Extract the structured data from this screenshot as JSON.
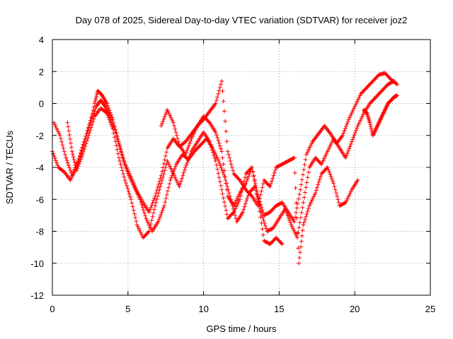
{
  "chart_data": {
    "type": "scatter",
    "title": "Day 078 of 2025, Sidereal Day-to-day VTEC variation (SDTVAR) for receiver joz2",
    "xlabel": "GPS time / hours",
    "ylabel": "SDTVAR / TECUs",
    "xlim": [
      0,
      25
    ],
    "ylim": [
      -12,
      4
    ],
    "xticks": [
      "0",
      "5",
      "10",
      "15",
      "20",
      "25"
    ],
    "yticks": [
      "4",
      "2",
      "0",
      "-2",
      "-4",
      "-6",
      "-8",
      "-10",
      "-12"
    ],
    "grid": true,
    "marker": "plus",
    "color": "#ff0000",
    "series": [
      {
        "x": [
          0,
          0.4,
          0.8,
          1.2,
          1.6,
          2.0,
          2.4,
          2.8,
          3.0,
          3.3,
          3.6,
          4.0,
          4.4,
          4.8,
          5.2,
          5.6,
          6.0,
          6.4,
          6.8,
          7.2,
          7.6,
          8.0,
          8.4,
          8.8,
          9.2,
          9.6,
          10.0,
          10.4,
          10.8,
          11.2,
          11.6,
          12.0,
          12.4,
          12.8,
          13.2,
          13.6,
          14.0,
          14.4,
          14.8,
          15.2,
          15.6,
          16.0,
          16.4,
          16.8,
          17.2,
          17.6,
          18.0,
          18.4,
          18.8,
          19.2,
          19.6,
          20.0,
          20.4,
          20.8,
          21.2,
          21.6,
          22.0,
          22.4,
          22.8
        ],
        "y": [
          -3.0,
          -4.0,
          -4.3,
          -4.8,
          -4.0,
          -2.8,
          -1.5,
          0.0,
          0.8,
          0.5,
          0.0,
          -1.0,
          -2.5,
          -3.8,
          -4.6,
          -5.5,
          -6.2,
          -6.8,
          -5.8,
          -4.5,
          -2.8,
          -2.2,
          -2.7,
          -2.4,
          -1.9,
          -1.4,
          -0.8,
          -1.2,
          -1.8,
          -3.0,
          -5.8,
          -6.4,
          -5.6,
          -5.0,
          -4.0,
          -5.8,
          -7.0,
          -6.8,
          -6.4,
          -6.2,
          -6.8,
          -7.4,
          -5.4,
          -3.2,
          -2.4,
          -1.9,
          -1.4,
          -1.9,
          -2.5,
          -2.0,
          -1.0,
          -0.2,
          0.6,
          1.0,
          1.4,
          1.8,
          1.9,
          1.5,
          1.2
        ]
      },
      {
        "x": [
          0.1,
          0.5,
          0.9,
          1.3,
          1.7,
          2.1,
          2.5,
          2.9,
          3.2,
          3.5,
          3.8,
          4.2,
          4.6,
          5.0,
          5.4,
          5.8,
          6.2,
          6.6,
          7.0,
          7.4,
          7.8,
          8.2,
          8.6,
          9.0,
          9.4,
          9.8,
          10.2,
          10.6,
          11.0,
          11.4,
          11.8,
          12.2,
          12.6,
          13.0,
          13.4,
          13.8,
          14.2,
          14.6,
          15.0,
          15.4,
          15.8,
          16.2,
          16.6,
          17.0,
          17.4,
          17.8,
          18.2,
          18.6,
          19.0,
          19.4,
          19.8,
          20.2,
          20.6,
          21.0,
          21.4,
          21.8,
          22.2,
          22.6
        ],
        "y": [
          -1.2,
          -2.0,
          -3.4,
          -4.5,
          -3.6,
          -2.4,
          -1.2,
          -0.2,
          0.2,
          -0.2,
          -0.8,
          -1.8,
          -3.2,
          -4.4,
          -5.2,
          -6.0,
          -7.2,
          -8.0,
          -7.4,
          -6.4,
          -4.8,
          -3.8,
          -3.2,
          -3.5,
          -3.0,
          -2.6,
          -2.2,
          -2.8,
          -3.6,
          -4.6,
          -6.0,
          -7.4,
          -6.8,
          -5.6,
          -5.2,
          -6.8,
          -8.0,
          -7.8,
          -7.2,
          -6.6,
          -7.6,
          -8.4,
          -6.2,
          -4.0,
          -3.4,
          -3.8,
          -3.0,
          -2.2,
          -2.8,
          -3.4,
          -2.4,
          -1.4,
          -0.6,
          0.0,
          0.4,
          0.8,
          1.2,
          1.4
        ]
      },
      {
        "x": [
          1.0,
          1.3,
          1.6,
          2.0,
          2.4,
          2.8,
          3.2,
          3.6,
          4.0,
          4.4,
          4.8,
          5.2,
          5.6,
          6.0,
          6.4,
          6.8,
          7.2,
          7.6,
          8.0,
          8.4,
          8.8,
          9.2,
          9.6,
          10.0,
          10.4,
          10.8,
          11.2,
          11.6,
          12.0,
          12.4,
          12.8,
          13.2,
          13.6,
          14.0,
          14.4,
          14.8,
          15.2
        ],
        "y": [
          -1.2,
          -3.0,
          -4.2,
          -3.2,
          -2.0,
          -0.8,
          -0.3,
          -0.6,
          -1.6,
          -3.4,
          -4.8,
          -6.0,
          -7.6,
          -8.4,
          -8.0,
          -6.4,
          -5.0,
          -3.6,
          -4.4,
          -5.2,
          -4.0,
          -3.0,
          -2.4,
          -1.8,
          -2.4,
          -3.6,
          -5.4,
          -7.2,
          -6.8,
          -6.0,
          -4.4,
          -4.0,
          -6.0,
          -8.6,
          -8.8,
          -8.4,
          -8.8
        ]
      },
      {
        "x": [
          7.2,
          7.6,
          8.0,
          8.4,
          8.8,
          9.2,
          9.6,
          10.0,
          10.4,
          10.8,
          11.2,
          11.6,
          12.0,
          12.4,
          12.8,
          13.2,
          13.6,
          14.0,
          14.4,
          14.8,
          15.2,
          15.6,
          16.0,
          16.3,
          16.6,
          17.0,
          17.4,
          17.8,
          18.2,
          18.6,
          19.0,
          19.4,
          19.8,
          20.2
        ],
        "y": [
          -1.4,
          -0.4,
          -1.2,
          -2.6,
          -3.2,
          -2.2,
          -1.4,
          -1.0,
          -0.5,
          0.0,
          1.4,
          -3.0,
          -4.4,
          -4.8,
          -5.4,
          -5.8,
          -6.4,
          -4.8,
          -5.2,
          -4.0,
          -3.8,
          -3.6,
          -3.4,
          -10.0,
          -7.6,
          -6.4,
          -5.6,
          -4.4,
          -4.0,
          -5.0,
          -6.4,
          -6.2,
          -5.4,
          -4.8
        ]
      },
      {
        "x": [
          20.6,
          20.8,
          21.0,
          21.2,
          21.4,
          21.6,
          21.8,
          22.0,
          22.2,
          22.4,
          22.6,
          22.8
        ],
        "y": [
          -0.4,
          -0.6,
          -1.2,
          -2.0,
          -1.6,
          -1.2,
          -0.8,
          -0.4,
          0.0,
          0.2,
          0.4,
          0.5
        ]
      }
    ]
  }
}
